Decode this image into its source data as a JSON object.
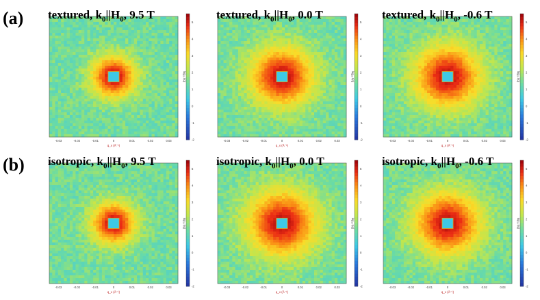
{
  "figure": {
    "row_labels": [
      "(a)",
      "(b)"
    ]
  },
  "chart_data": [
    {
      "type": "heatmap",
      "row": "(a)",
      "title": {
        "prefix": "textured",
        "k": "k",
        "k_sub": "0",
        "sep": "||",
        "h": "H",
        "h_sub": "0",
        "field": "9.5 T"
      },
      "xlabel": "q_x (Å⁻¹)",
      "ylabel": "q_y (Å⁻¹)",
      "cbar_label": "log₁₀ I(q)",
      "xlim": [
        -0.035,
        0.035
      ],
      "ylim": [
        -0.035,
        0.035
      ],
      "xticks": [
        "-0.03",
        "-0.02",
        "-0.01",
        "0",
        "0.01",
        "0.02",
        "0.03"
      ],
      "yticks": [
        "0.03",
        "0.02",
        "0.01",
        "0",
        "-0.01",
        "-0.02",
        "-0.03"
      ],
      "cbar_ticks": [
        "5",
        "4",
        "3",
        "2",
        "1",
        "0",
        "-1",
        "-2"
      ],
      "cbar_range": [
        -2,
        5.5
      ],
      "peak_value": 5.2,
      "background_value": 1.4,
      "core_radius": 0.012,
      "beamstop_halfwidth": 0.003
    },
    {
      "type": "heatmap",
      "row": "(a)",
      "title": {
        "prefix": "textured",
        "k": "k",
        "k_sub": "0",
        "sep": "||",
        "h": "H",
        "h_sub": "0",
        "field": "0.0 T"
      },
      "xlabel": "q_x (Å⁻¹)",
      "ylabel": "q_y (Å⁻¹)",
      "cbar_label": "log₁₀ I(q)",
      "xlim": [
        -0.035,
        0.035
      ],
      "ylim": [
        -0.035,
        0.035
      ],
      "xticks": [
        "-0.03",
        "-0.02",
        "-0.01",
        "0",
        "0.01",
        "0.02",
        "0.03"
      ],
      "yticks": [
        "0.03",
        "0.02",
        "0.01",
        "0",
        "-0.01",
        "-0.02",
        "-0.03"
      ],
      "cbar_ticks": [
        "5",
        "4",
        "3",
        "2",
        "1",
        "0",
        "-1",
        "-2"
      ],
      "cbar_range": [
        -2,
        5.5
      ],
      "peak_value": 5.2,
      "background_value": 1.4,
      "core_radius": 0.017,
      "beamstop_halfwidth": 0.003
    },
    {
      "type": "heatmap",
      "row": "(a)",
      "title": {
        "prefix": "textured",
        "k": "k",
        "k_sub": "0",
        "sep": "||",
        "h": "H",
        "h_sub": "0",
        "field": "-0.6 T"
      },
      "xlabel": "q_x (Å⁻¹)",
      "ylabel": "q_y (Å⁻¹)",
      "cbar_label": "log₁₀ I(q)",
      "xlim": [
        -0.035,
        0.035
      ],
      "ylim": [
        -0.035,
        0.035
      ],
      "xticks": [
        "-0.03",
        "-0.02",
        "-0.01",
        "0",
        "0.01",
        "0.02",
        "0.03"
      ],
      "yticks": [
        "0.03",
        "0.02",
        "0.01",
        "0",
        "-0.01",
        "-0.02",
        "-0.03"
      ],
      "cbar_ticks": [
        "5",
        "4",
        "3",
        "2",
        "1",
        "0",
        "-1",
        "-2"
      ],
      "cbar_range": [
        -2,
        5.5
      ],
      "peak_value": 5.2,
      "background_value": 1.4,
      "core_radius": 0.018,
      "beamstop_halfwidth": 0.003
    },
    {
      "type": "heatmap",
      "row": "(b)",
      "title": {
        "prefix": "isotropic",
        "k": "k",
        "k_sub": "0",
        "sep": "||",
        "h": "H",
        "h_sub": "0",
        "field": "9.5 T"
      },
      "xlabel": "q_x (Å⁻¹)",
      "ylabel": "q_y (Å⁻¹)",
      "cbar_label": "log₁₀ I(q)",
      "xlim": [
        -0.035,
        0.035
      ],
      "ylim": [
        -0.035,
        0.035
      ],
      "xticks": [
        "-0.03",
        "-0.02",
        "-0.01",
        "0",
        "0.01",
        "0.02",
        "0.03"
      ],
      "yticks": [
        "0.03",
        "0.02",
        "0.01",
        "0",
        "-0.01",
        "-0.02",
        "-0.03"
      ],
      "cbar_ticks": [
        "5",
        "4",
        "3",
        "2",
        "1",
        "0",
        "-1",
        "-2"
      ],
      "cbar_range": [
        -2,
        5.5
      ],
      "peak_value": 5.2,
      "background_value": 1.4,
      "core_radius": 0.012,
      "beamstop_halfwidth": 0.003
    },
    {
      "type": "heatmap",
      "row": "(b)",
      "title": {
        "prefix": "isotropic",
        "k": "k",
        "k_sub": "0",
        "sep": "||",
        "h": "H",
        "h_sub": "0",
        "field": "0.0 T"
      },
      "xlabel": "q_x (Å⁻¹)",
      "ylabel": "q_y (Å⁻¹)",
      "cbar_label": "log₁₀ I(q)",
      "xlim": [
        -0.035,
        0.035
      ],
      "ylim": [
        -0.035,
        0.035
      ],
      "xticks": [
        "-0.03",
        "-0.02",
        "-0.01",
        "0",
        "0.01",
        "0.02",
        "0.03"
      ],
      "yticks": [
        "0.03",
        "0.02",
        "0.01",
        "0",
        "-0.01",
        "-0.02",
        "-0.03"
      ],
      "cbar_ticks": [
        "5",
        "4",
        "3",
        "2",
        "1",
        "0",
        "-1",
        "-2"
      ],
      "cbar_range": [
        -2,
        5.5
      ],
      "peak_value": 5.2,
      "background_value": 1.4,
      "core_radius": 0.019,
      "beamstop_halfwidth": 0.003
    },
    {
      "type": "heatmap",
      "row": "(b)",
      "title": {
        "prefix": "isotropic",
        "k": "k",
        "k_sub": "0",
        "sep": "||",
        "h": "H",
        "h_sub": "0",
        "field": "-0.6 T"
      },
      "xlabel": "q_x (Å⁻¹)",
      "ylabel": "q_y (Å⁻¹)",
      "cbar_label": "log₁₀ I(q)",
      "xlim": [
        -0.035,
        0.035
      ],
      "ylim": [
        -0.035,
        0.035
      ],
      "xticks": [
        "-0.03",
        "-0.02",
        "-0.01",
        "0",
        "0.01",
        "0.02",
        "0.03"
      ],
      "yticks": [
        "0.03",
        "0.02",
        "0.01",
        "0",
        "-0.01",
        "-0.02",
        "-0.03"
      ],
      "cbar_ticks": [
        "5",
        "4",
        "3",
        "2",
        "1",
        "0",
        "-1",
        "-2"
      ],
      "cbar_range": [
        -2,
        5.5
      ],
      "peak_value": 5.2,
      "background_value": 1.4,
      "core_radius": 0.018,
      "beamstop_halfwidth": 0.003
    }
  ]
}
